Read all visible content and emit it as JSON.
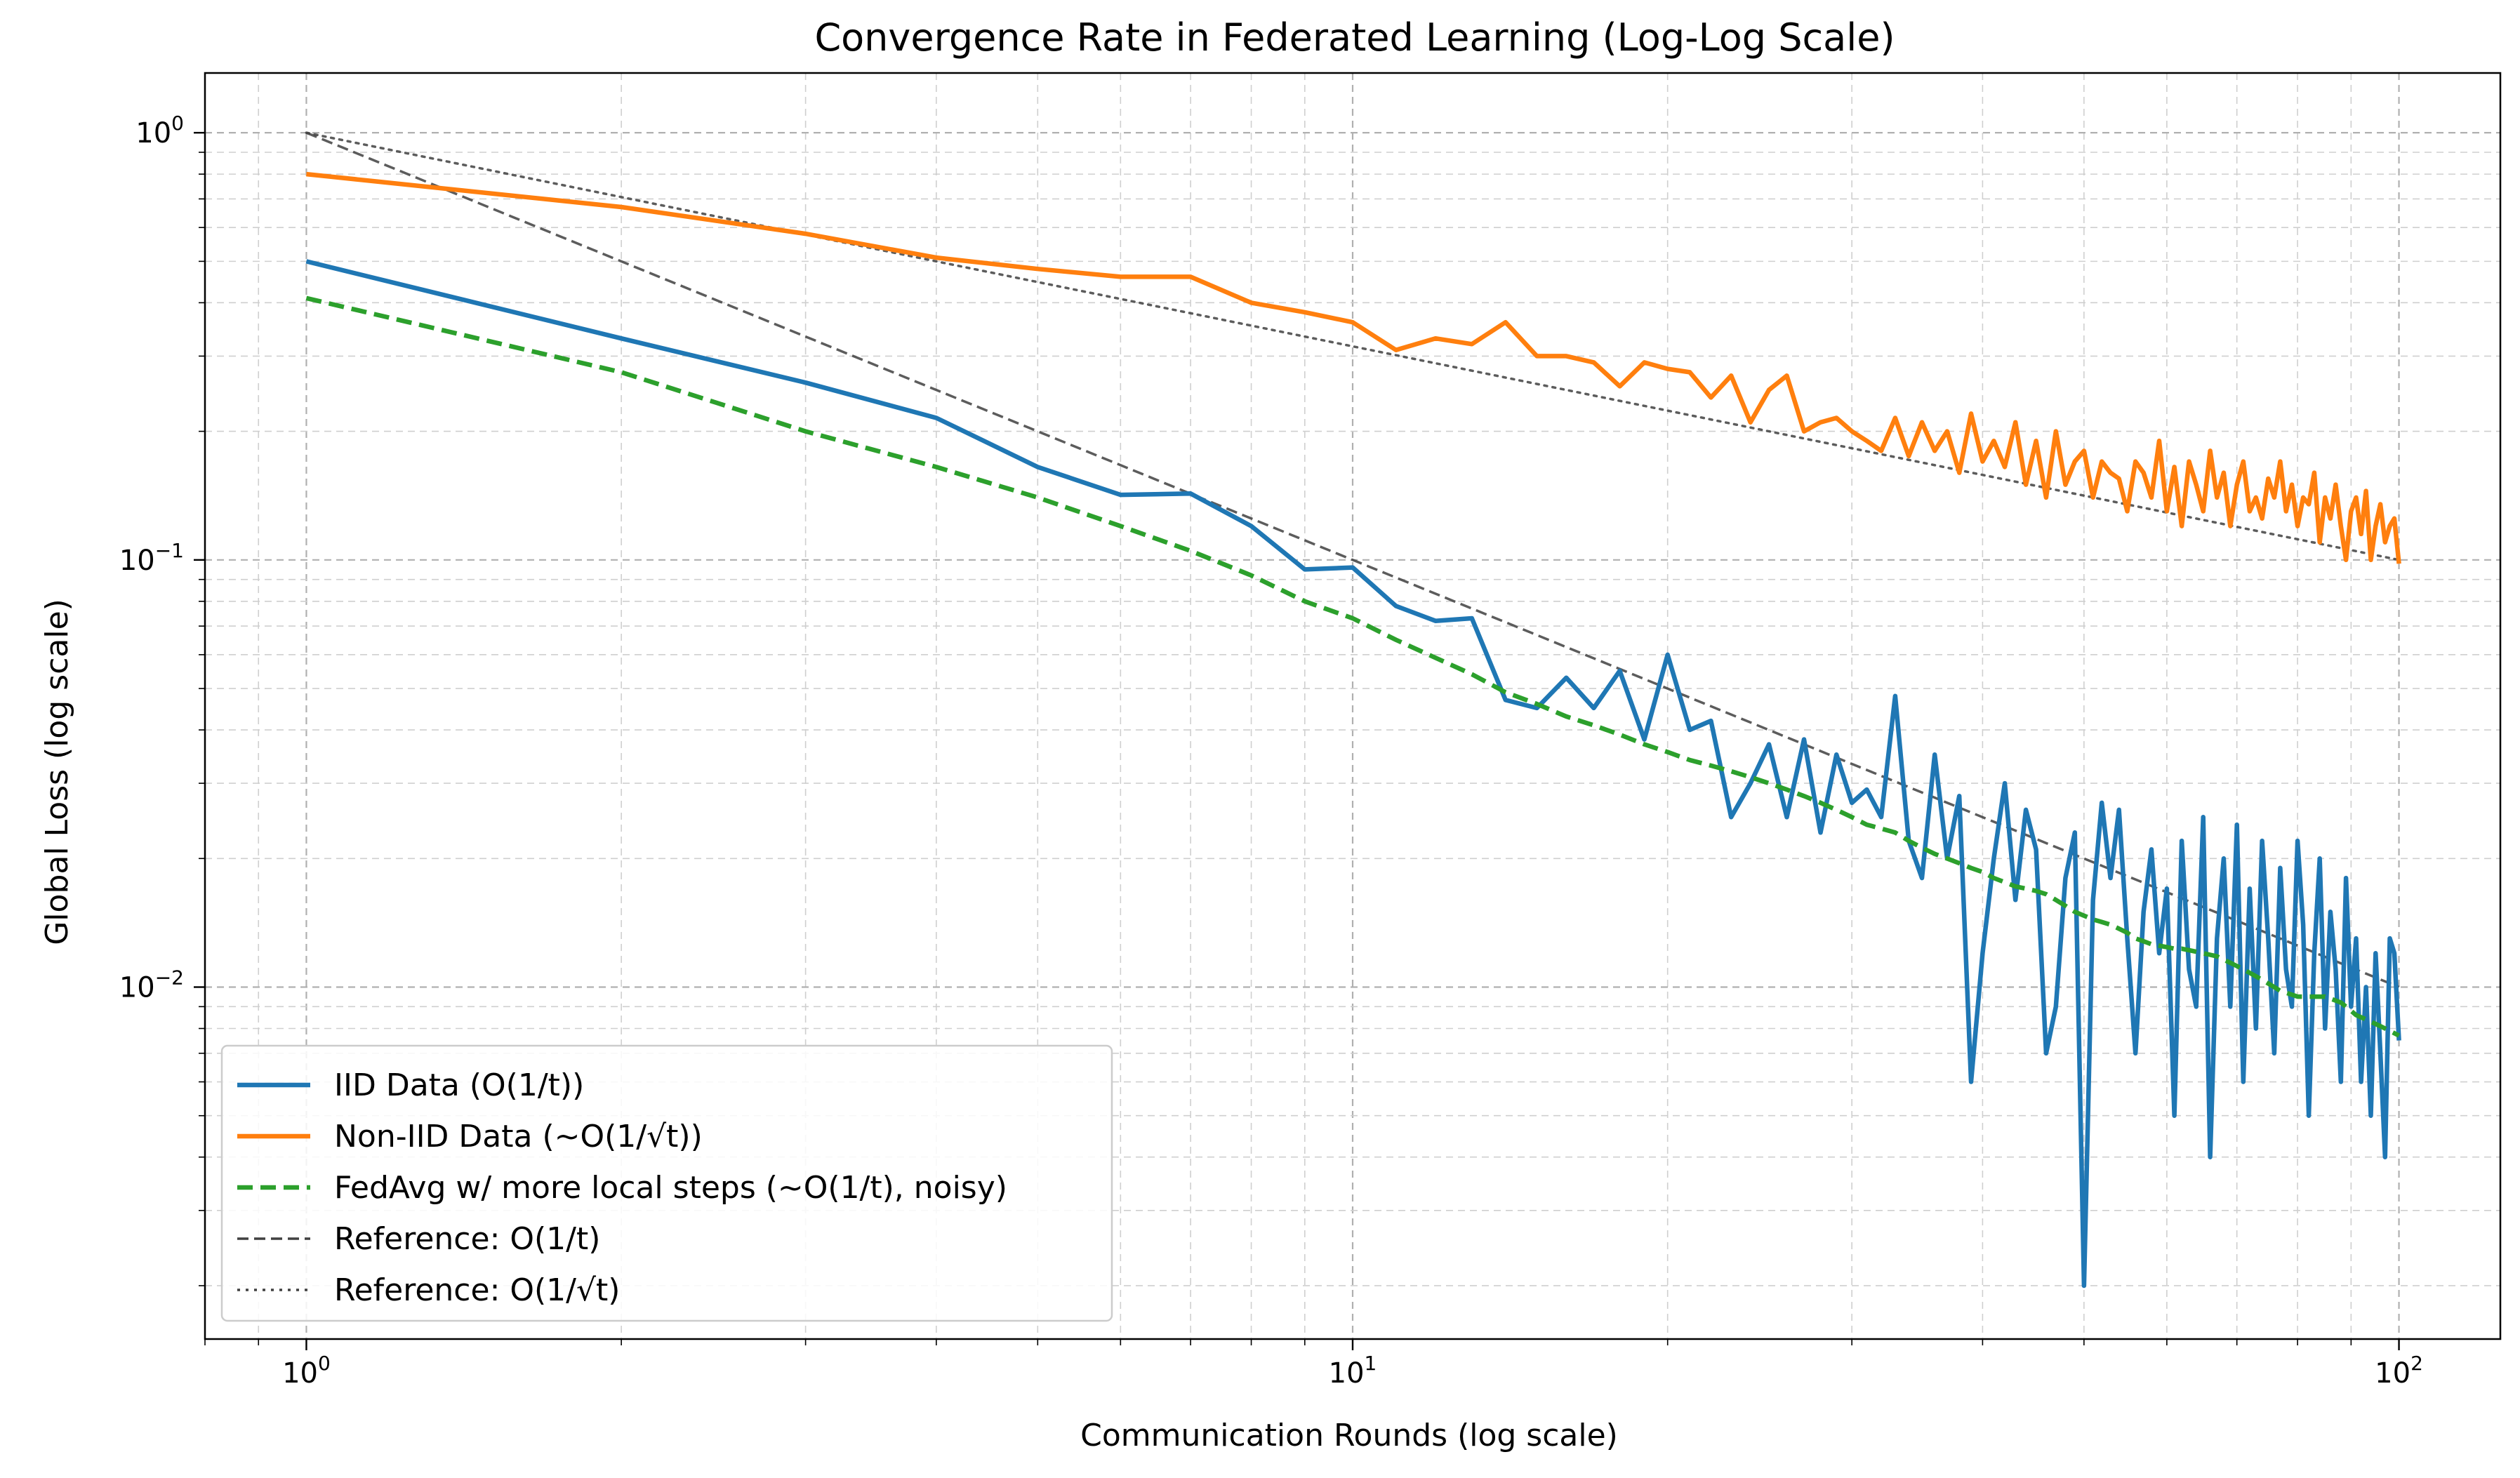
{
  "chart_data": {
    "type": "line",
    "title": "Convergence Rate in Federated Learning (Log-Log Scale)",
    "xlabel": "Communication Rounds (log scale)",
    "ylabel": "Global Loss (log scale)",
    "xscale": "log",
    "yscale": "log",
    "xlim": [
      0.8,
      125
    ],
    "ylim": [
      0.0015,
      1.38
    ],
    "grid": true,
    "legend_position": "lower-left",
    "x_ticks": [
      {
        "value": 1,
        "base": "10",
        "exp": "0"
      },
      {
        "value": 10,
        "base": "10",
        "exp": "1"
      },
      {
        "value": 100,
        "base": "10",
        "exp": "2"
      }
    ],
    "y_ticks": [
      {
        "value": 1,
        "base": "10",
        "exp": "0"
      },
      {
        "value": 0.1,
        "base": "10",
        "exp": "−1"
      },
      {
        "value": 0.01,
        "base": "10",
        "exp": "−2"
      }
    ],
    "series": [
      {
        "name": "IID Data (O(1/t))",
        "color": "#1f77b4",
        "style": "solid",
        "x": [
          1,
          2,
          3,
          4,
          5,
          6,
          7,
          8,
          9,
          10,
          11,
          12,
          13,
          14,
          15,
          16,
          17,
          18,
          19,
          20,
          21,
          22,
          23,
          24,
          25,
          26,
          27,
          28,
          29,
          30,
          31,
          32,
          33,
          34,
          35,
          36,
          37,
          38,
          39,
          40,
          41,
          42,
          43,
          44,
          45,
          46,
          47,
          48,
          49,
          50,
          51,
          52,
          53,
          54,
          55,
          56,
          57,
          58,
          59,
          60,
          61,
          62,
          63,
          64,
          65,
          66,
          67,
          68,
          69,
          70,
          71,
          72,
          73,
          74,
          75,
          76,
          77,
          78,
          79,
          80,
          81,
          82,
          83,
          84,
          85,
          86,
          87,
          88,
          89,
          90,
          91,
          92,
          93,
          94,
          95,
          96,
          97,
          98,
          99,
          100
        ],
        "y": [
          0.5,
          0.33,
          0.26,
          0.215,
          0.165,
          0.142,
          0.143,
          0.12,
          0.095,
          0.096,
          0.078,
          0.072,
          0.073,
          0.047,
          0.045,
          0.053,
          0.045,
          0.055,
          0.038,
          0.06,
          0.04,
          0.042,
          0.025,
          0.03,
          0.037,
          0.025,
          0.038,
          0.023,
          0.035,
          0.027,
          0.029,
          0.025,
          0.048,
          0.022,
          0.018,
          0.035,
          0.02,
          0.028,
          0.006,
          0.012,
          0.02,
          0.03,
          0.016,
          0.026,
          0.021,
          0.007,
          0.009,
          0.018,
          0.023,
          0.002,
          0.016,
          0.027,
          0.018,
          0.026,
          0.013,
          0.007,
          0.015,
          0.021,
          0.012,
          0.017,
          0.005,
          0.022,
          0.011,
          0.009,
          0.025,
          0.004,
          0.013,
          0.02,
          0.009,
          0.024,
          0.006,
          0.017,
          0.008,
          0.022,
          0.013,
          0.007,
          0.019,
          0.011,
          0.009,
          0.022,
          0.014,
          0.005,
          0.012,
          0.02,
          0.008,
          0.015,
          0.011,
          0.006,
          0.018,
          0.009,
          0.013,
          0.006,
          0.01,
          0.005,
          0.012,
          0.007,
          0.004,
          0.013,
          0.012,
          0.0075
        ]
      },
      {
        "name": "Non-IID Data (~O(1/√t))",
        "color": "#ff7f0e",
        "style": "solid",
        "x": [
          1,
          2,
          3,
          4,
          5,
          6,
          7,
          8,
          9,
          10,
          11,
          12,
          13,
          14,
          15,
          16,
          17,
          18,
          19,
          20,
          21,
          22,
          23,
          24,
          25,
          26,
          27,
          28,
          29,
          30,
          31,
          32,
          33,
          34,
          35,
          36,
          37,
          38,
          39,
          40,
          41,
          42,
          43,
          44,
          45,
          46,
          47,
          48,
          49,
          50,
          51,
          52,
          53,
          54,
          55,
          56,
          57,
          58,
          59,
          60,
          61,
          62,
          63,
          64,
          65,
          66,
          67,
          68,
          69,
          70,
          71,
          72,
          73,
          74,
          75,
          76,
          77,
          78,
          79,
          80,
          81,
          82,
          83,
          84,
          85,
          86,
          87,
          88,
          89,
          90,
          91,
          92,
          93,
          94,
          95,
          96,
          97,
          98,
          99,
          100
        ],
        "y": [
          0.8,
          0.67,
          0.58,
          0.51,
          0.48,
          0.46,
          0.46,
          0.4,
          0.38,
          0.36,
          0.31,
          0.33,
          0.32,
          0.36,
          0.3,
          0.3,
          0.29,
          0.255,
          0.29,
          0.28,
          0.275,
          0.24,
          0.27,
          0.21,
          0.25,
          0.27,
          0.2,
          0.21,
          0.215,
          0.2,
          0.19,
          0.18,
          0.215,
          0.175,
          0.21,
          0.18,
          0.2,
          0.16,
          0.22,
          0.17,
          0.19,
          0.165,
          0.21,
          0.15,
          0.19,
          0.14,
          0.2,
          0.15,
          0.17,
          0.18,
          0.14,
          0.17,
          0.16,
          0.155,
          0.13,
          0.17,
          0.16,
          0.14,
          0.19,
          0.13,
          0.165,
          0.12,
          0.17,
          0.15,
          0.13,
          0.18,
          0.14,
          0.16,
          0.12,
          0.15,
          0.17,
          0.13,
          0.14,
          0.125,
          0.155,
          0.14,
          0.17,
          0.13,
          0.15,
          0.12,
          0.14,
          0.135,
          0.16,
          0.11,
          0.14,
          0.125,
          0.15,
          0.12,
          0.1,
          0.13,
          0.14,
          0.115,
          0.145,
          0.1,
          0.12,
          0.135,
          0.11,
          0.12,
          0.125,
          0.098
        ]
      },
      {
        "name": "FedAvg w/ more local steps (~O(1/t), noisy)",
        "color": "#2ca02c",
        "style": "dashed",
        "x": [
          1,
          2,
          3,
          4,
          5,
          6,
          7,
          8,
          9,
          10,
          11,
          12,
          13,
          14,
          15,
          16,
          17,
          18,
          19,
          20,
          21,
          22,
          23,
          24,
          25,
          26,
          27,
          28,
          29,
          30,
          31,
          32,
          33,
          34,
          35,
          36,
          37,
          38,
          39,
          40,
          41,
          42,
          43,
          44,
          45,
          46,
          47,
          48,
          49,
          50,
          51,
          52,
          53,
          54,
          55,
          56,
          57,
          58,
          59,
          60,
          61,
          62,
          63,
          64,
          65,
          66,
          67,
          68,
          69,
          70,
          71,
          72,
          73,
          74,
          75,
          76,
          77,
          78,
          79,
          80,
          81,
          82,
          83,
          84,
          85,
          86,
          87,
          88,
          89,
          90,
          91,
          92,
          93,
          94,
          95,
          96,
          97,
          98,
          99,
          100
        ],
        "y": [
          0.41,
          0.275,
          0.2,
          0.165,
          0.14,
          0.12,
          0.105,
          0.092,
          0.08,
          0.073,
          0.065,
          0.059,
          0.054,
          0.049,
          0.046,
          0.043,
          0.041,
          0.039,
          0.037,
          0.0355,
          0.034,
          0.033,
          0.032,
          0.031,
          0.03,
          0.029,
          0.028,
          0.027,
          0.026,
          0.025,
          0.024,
          0.0235,
          0.023,
          0.022,
          0.0212,
          0.0205,
          0.02,
          0.0195,
          0.019,
          0.0186,
          0.018,
          0.0176,
          0.0172,
          0.017,
          0.0168,
          0.0165,
          0.016,
          0.0155,
          0.015,
          0.0147,
          0.0144,
          0.0142,
          0.014,
          0.0137,
          0.0134,
          0.013,
          0.0128,
          0.0126,
          0.0125,
          0.0124,
          0.0123,
          0.0123,
          0.0122,
          0.0121,
          0.012,
          0.0119,
          0.0118,
          0.0116,
          0.0114,
          0.0112,
          0.011,
          0.0108,
          0.0106,
          0.0104,
          0.0102,
          0.01,
          0.0098,
          0.0097,
          0.0096,
          0.0095,
          0.0095,
          0.0095,
          0.0095,
          0.0095,
          0.0095,
          0.0094,
          0.0093,
          0.0092,
          0.009,
          0.0088,
          0.0086,
          0.0085,
          0.0084,
          0.0083,
          0.0082,
          0.0081,
          0.008,
          0.0079,
          0.0078,
          0.0077
        ]
      },
      {
        "name": "Reference: O(1/t)",
        "color": "#404040",
        "style": "dashed",
        "formula": "1/t",
        "x": [
          1,
          2,
          3,
          5,
          7,
          10,
          15,
          20,
          30,
          50,
          70,
          100
        ],
        "y": [
          1,
          0.5,
          0.3333,
          0.2,
          0.1429,
          0.1,
          0.0667,
          0.05,
          0.0333,
          0.02,
          0.0143,
          0.01
        ]
      },
      {
        "name": "Reference: O(1/√t)",
        "color": "#404040",
        "style": "dotted",
        "formula": "1/sqrt(t)",
        "x": [
          1,
          2,
          3,
          5,
          7,
          10,
          15,
          20,
          30,
          50,
          70,
          100
        ],
        "y": [
          1,
          0.7071,
          0.5774,
          0.4472,
          0.378,
          0.3162,
          0.2582,
          0.2236,
          0.1826,
          0.1414,
          0.1195,
          0.1
        ]
      }
    ]
  }
}
